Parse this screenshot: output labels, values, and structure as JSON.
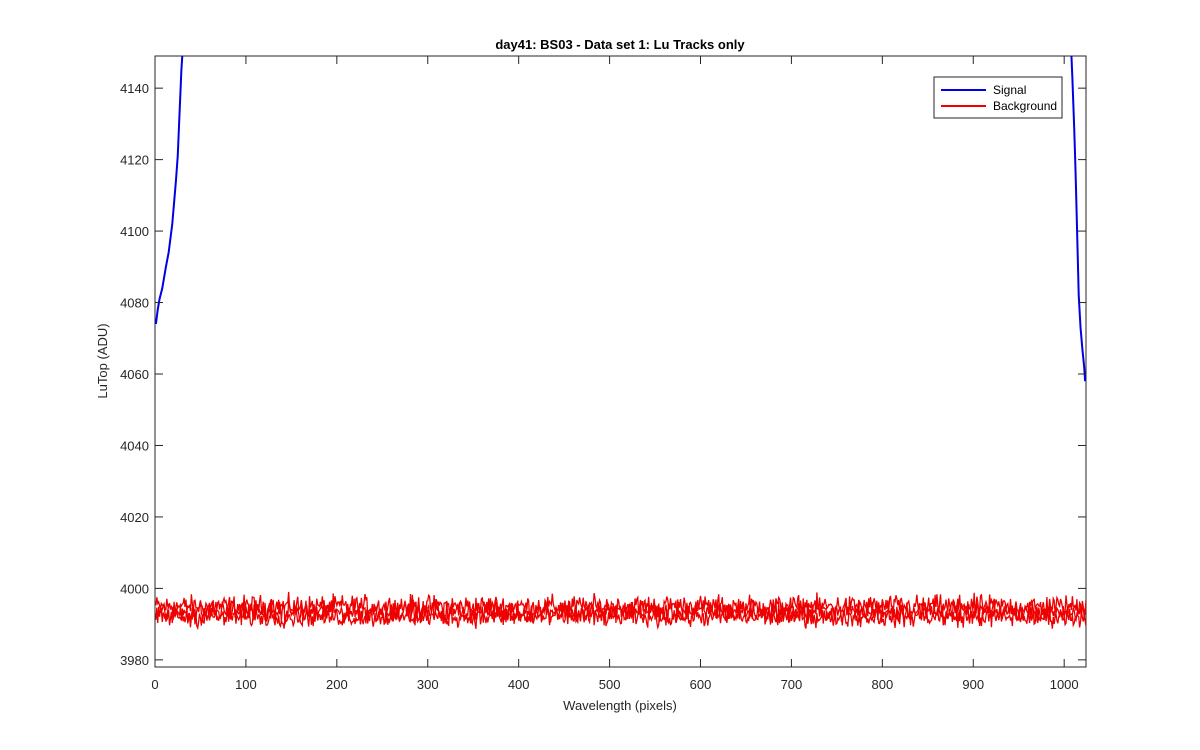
{
  "colors": {
    "signal": "#0000e6",
    "background": "#ee0000",
    "axes": "#262626",
    "figure_background": "#ffffff"
  },
  "chart_data": {
    "type": "line",
    "title": "day41: BS03 - Data set 1: Lu Tracks only",
    "xlabel": "Wavelength (pixels)",
    "ylabel": "LuTop (ADU)",
    "xlim": [
      0,
      1024
    ],
    "ylim": [
      3978,
      4149
    ],
    "x_ticks": [
      0,
      100,
      200,
      300,
      400,
      500,
      600,
      700,
      800,
      900,
      1000
    ],
    "y_ticks": [
      3980,
      4000,
      4020,
      4040,
      4060,
      4080,
      4100,
      4120,
      4140
    ],
    "grid": false,
    "legend": {
      "position": "top-right",
      "entries": [
        "Signal",
        "Background"
      ]
    },
    "series": [
      {
        "name": "Signal",
        "color": "#0000e6",
        "segments": [
          {
            "x": [
              1,
              3,
              5,
              8,
              10,
              12,
              15,
              17,
              19,
              21,
              23,
              25,
              26,
              27,
              28,
              29,
              30
            ],
            "y": [
              4074,
              4078,
              4081,
              4084,
              4087,
              4090,
              4094,
              4098,
              4102,
              4108,
              4114,
              4121,
              4127,
              4133,
              4139,
              4145,
              4149
            ]
          },
          {
            "x": [
              1008,
              1009,
              1010,
              1011,
              1012,
              1013,
              1014,
              1015,
              1016,
              1018,
              1020,
              1022,
              1023
            ],
            "y": [
              4149,
              4143,
              4136,
              4129,
              4121,
              4112,
              4102,
              4092,
              4082,
              4073,
              4067,
              4062,
              4058
            ]
          }
        ]
      },
      {
        "name": "Background",
        "color": "#ee0000",
        "traces": [
          {
            "level": 3995.0,
            "min": 3989,
            "max": 3999
          },
          {
            "level": 3993.5,
            "min": 3988,
            "max": 3998
          },
          {
            "level": 3992.0,
            "min": 3988,
            "max": 3997
          }
        ]
      }
    ]
  }
}
